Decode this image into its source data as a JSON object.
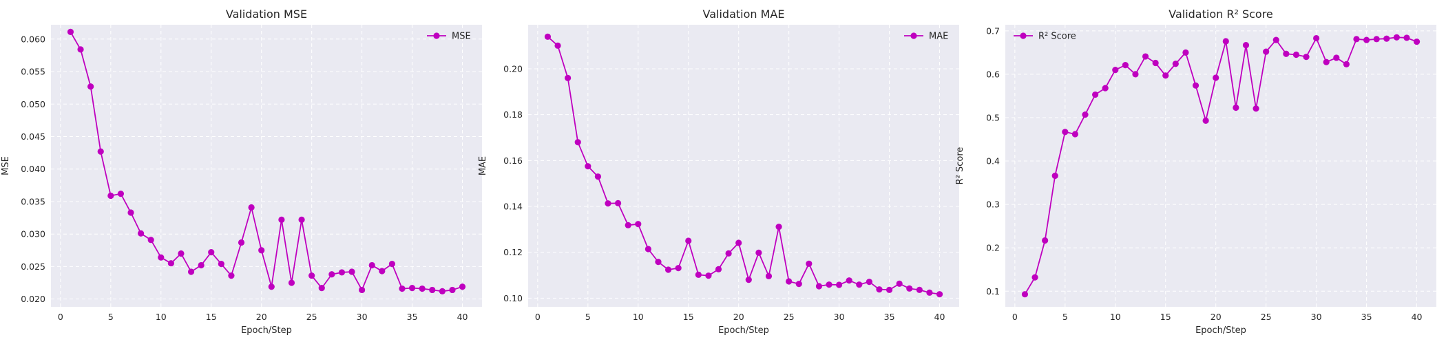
{
  "style": {
    "plot_bg": "#eaeaf2",
    "grid_color": "#ffffff",
    "series_color": "#bf00bf"
  },
  "chart_data": [
    {
      "type": "line",
      "title": "Validation MSE",
      "xlabel": "Epoch/Step",
      "ylabel": "MSE",
      "xlim": [
        -0.95,
        41.95
      ],
      "ylim": [
        0.0188,
        0.0622
      ],
      "xticks": [
        0,
        5,
        10,
        15,
        20,
        25,
        30,
        35,
        40
      ],
      "yticks": [
        0.02,
        0.025,
        0.03,
        0.035,
        0.04,
        0.045,
        0.05,
        0.055,
        0.06
      ],
      "ytick_labels": [
        "0.020",
        "0.025",
        "0.030",
        "0.035",
        "0.040",
        "0.045",
        "0.050",
        "0.055",
        "0.060"
      ],
      "grid": true,
      "legend": "top-right",
      "x": [
        1,
        2,
        3,
        4,
        5,
        6,
        7,
        8,
        9,
        10,
        11,
        12,
        13,
        14,
        15,
        16,
        17,
        18,
        19,
        20,
        21,
        22,
        23,
        24,
        25,
        26,
        27,
        28,
        29,
        30,
        31,
        32,
        33,
        34,
        35,
        36,
        37,
        38,
        39,
        40
      ],
      "series": [
        {
          "name": "MSE",
          "values": [
            0.0611,
            0.0584,
            0.0527,
            0.0427,
            0.0359,
            0.0362,
            0.0333,
            0.0301,
            0.0291,
            0.0264,
            0.0255,
            0.027,
            0.0242,
            0.0252,
            0.0272,
            0.0254,
            0.0236,
            0.0287,
            0.0341,
            0.0275,
            0.0219,
            0.0322,
            0.0225,
            0.0322,
            0.0236,
            0.0217,
            0.0238,
            0.0241,
            0.0242,
            0.0214,
            0.0252,
            0.0243,
            0.0254,
            0.0216,
            0.0217,
            0.0216,
            0.0214,
            0.0212,
            0.0214,
            0.0219
          ]
        }
      ]
    },
    {
      "type": "line",
      "title": "Validation MAE",
      "xlabel": "Epoch/Step",
      "ylabel": "MAE",
      "xlim": [
        -0.95,
        41.95
      ],
      "ylim": [
        0.0962,
        0.2192
      ],
      "xticks": [
        0,
        5,
        10,
        15,
        20,
        25,
        30,
        35,
        40
      ],
      "yticks": [
        0.1,
        0.12,
        0.14,
        0.16,
        0.18,
        0.2
      ],
      "ytick_labels": [
        "0.10",
        "0.12",
        "0.14",
        "0.16",
        "0.18",
        "0.20"
      ],
      "grid": true,
      "legend": "top-right",
      "x": [
        1,
        2,
        3,
        4,
        5,
        6,
        7,
        8,
        9,
        10,
        11,
        12,
        13,
        14,
        15,
        16,
        17,
        18,
        19,
        20,
        21,
        22,
        23,
        24,
        25,
        26,
        27,
        28,
        29,
        30,
        31,
        32,
        33,
        34,
        35,
        36,
        37,
        38,
        39,
        40
      ],
      "series": [
        {
          "name": "MAE",
          "values": [
            0.214,
            0.2101,
            0.196,
            0.168,
            0.1575,
            0.153,
            0.1413,
            0.1414,
            0.1318,
            0.1323,
            0.1214,
            0.1158,
            0.1124,
            0.1131,
            0.125,
            0.1102,
            0.1098,
            0.1126,
            0.1195,
            0.1241,
            0.108,
            0.1198,
            0.1096,
            0.1311,
            0.1073,
            0.1062,
            0.115,
            0.1052,
            0.1059,
            0.1058,
            0.1077,
            0.1059,
            0.1071,
            0.1038,
            0.1036,
            0.1063,
            0.1042,
            0.1036,
            0.1024,
            0.1017
          ]
        }
      ]
    },
    {
      "type": "line",
      "title": "Validation R² Score",
      "xlabel": "Epoch/Step",
      "ylabel": "R² Score",
      "xlim": [
        -0.95,
        41.95
      ],
      "ylim": [
        0.064,
        0.714
      ],
      "xticks": [
        0,
        5,
        10,
        15,
        20,
        25,
        30,
        35,
        40
      ],
      "yticks": [
        0.1,
        0.2,
        0.3,
        0.4,
        0.5,
        0.6,
        0.7
      ],
      "ytick_labels": [
        "0.1",
        "0.2",
        "0.3",
        "0.4",
        "0.5",
        "0.6",
        "0.7"
      ],
      "grid": true,
      "legend": "top-left",
      "x": [
        1,
        2,
        3,
        4,
        5,
        6,
        7,
        8,
        9,
        10,
        11,
        12,
        13,
        14,
        15,
        16,
        17,
        18,
        19,
        20,
        21,
        22,
        23,
        24,
        25,
        26,
        27,
        28,
        29,
        30,
        31,
        32,
        33,
        34,
        35,
        36,
        37,
        38,
        39,
        40
      ],
      "series": [
        {
          "name": "R² Score",
          "values": [
            0.093,
            0.132,
            0.217,
            0.366,
            0.467,
            0.462,
            0.507,
            0.553,
            0.568,
            0.61,
            0.621,
            0.6,
            0.641,
            0.626,
            0.597,
            0.624,
            0.65,
            0.574,
            0.493,
            0.592,
            0.676,
            0.523,
            0.667,
            0.521,
            0.652,
            0.679,
            0.647,
            0.645,
            0.64,
            0.683,
            0.628,
            0.638,
            0.623,
            0.681,
            0.679,
            0.681,
            0.682,
            0.685,
            0.684,
            0.675
          ]
        }
      ]
    }
  ]
}
